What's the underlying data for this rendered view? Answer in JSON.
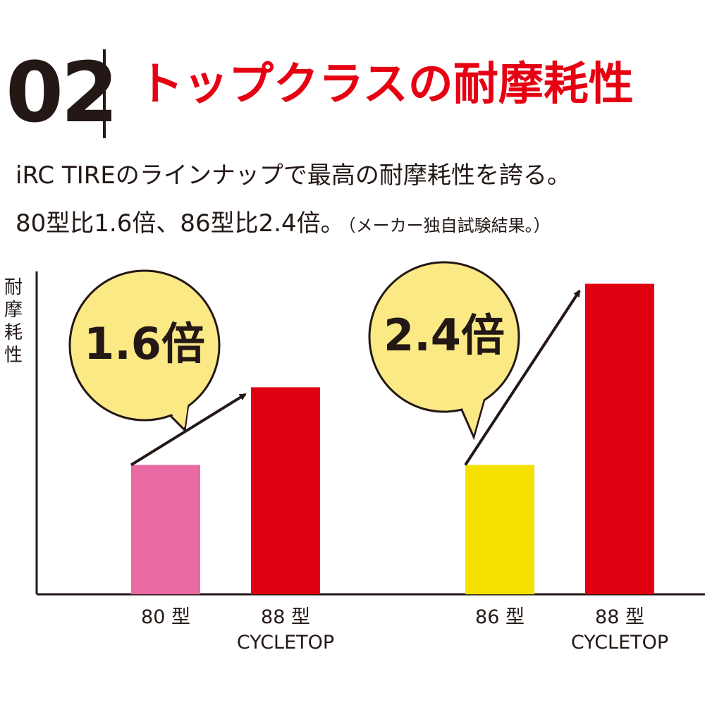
{
  "header": {
    "number": "02",
    "title": "トップクラスの耐摩耗性"
  },
  "text": [
    "iRC TIREのラインナップで最高の耐摩耗性を誇る。",
    "80型比1.6倍、86型比2.4倍。",
    "（メーカー独自試験結果。）"
  ],
  "chart_data": [
    {
      "type": "bar",
      "ylabel": "耐摩耗性",
      "categories": [
        "80 型",
        "88 型\nCYCLETOP"
      ],
      "values": [
        1,
        1.6
      ],
      "colors": [
        "#ea6aa3",
        "#e1000f"
      ],
      "annotation": "1.6倍",
      "ylim": [
        0,
        2.55
      ]
    },
    {
      "type": "bar",
      "categories": [
        "86 型",
        "88 型\nCYCLETOP"
      ],
      "values": [
        1,
        2.4
      ],
      "colors": [
        "#f5e000",
        "#e1000f"
      ],
      "annotation": "2.4倍",
      "ylim": [
        0,
        2.55
      ]
    }
  ]
}
